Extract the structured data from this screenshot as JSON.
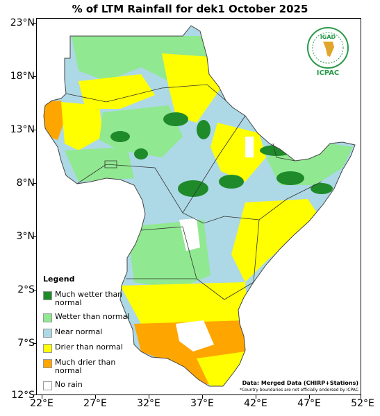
{
  "title": "% of LTM Rainfall for dek1 October 2025",
  "axes": {
    "lat_ticks": [
      "23°N",
      "18°N",
      "13°N",
      "8°N",
      "3°N",
      "2°S",
      "7°S",
      "12°S"
    ],
    "lon_ticks": [
      "22°E",
      "27°E",
      "32°E",
      "37°E",
      "42°E",
      "47°E",
      "52°E"
    ],
    "lat_range": [
      -12,
      23
    ],
    "lon_range": [
      21.5,
      51.5
    ]
  },
  "legend": {
    "title": "Legend",
    "items": [
      {
        "label": "Much wetter than\nnormal",
        "color": "#1f8a2a"
      },
      {
        "label": "Wetter than normal",
        "color": "#90e890"
      },
      {
        "label": "Near normal",
        "color": "#add8e6"
      },
      {
        "label": "Drier than normal",
        "color": "#ffff00"
      },
      {
        "label": "Much drier than\nnormal",
        "color": "#ffa500"
      },
      {
        "label": "No rain",
        "color": "#ffffff"
      }
    ]
  },
  "notes": {
    "data_source": "Data: Merged Data (CHIRP+Stations)",
    "boundary": "*Country boundaries are not officially endorsed by ICPAC"
  },
  "logo": {
    "name": "igad-icpac-logo",
    "seal_text": "IGAD",
    "caption": "ICPAC",
    "color": "#2a9a4a"
  }
}
